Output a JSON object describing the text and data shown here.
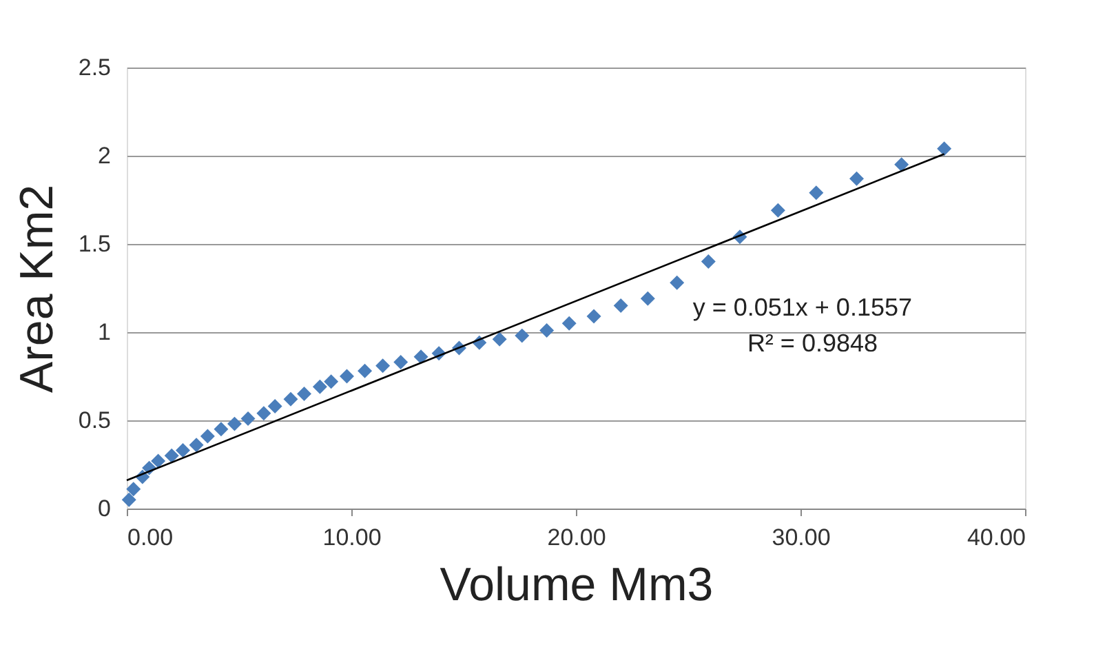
{
  "chart_data": {
    "type": "scatter",
    "xlabel": "Volume Mm3",
    "ylabel": "Area  Km2",
    "xlim": [
      0,
      40
    ],
    "ylim": [
      0,
      2.5
    ],
    "xticks": [
      {
        "value": 0,
        "label": "0.00"
      },
      {
        "value": 10,
        "label": "10.00"
      },
      {
        "value": 20,
        "label": "20.00"
      },
      {
        "value": 30,
        "label": "30.00"
      },
      {
        "value": 40,
        "label": "40.00"
      }
    ],
    "yticks": [
      0,
      0.5,
      1,
      1.5,
      2,
      2.5
    ],
    "grid": "y",
    "series": [
      {
        "marker": "diamond",
        "color": "#4a7ebb",
        "x": [
          0.1,
          0.3,
          0.7,
          1.0,
          1.4,
          2.0,
          2.5,
          3.1,
          3.6,
          4.2,
          4.8,
          5.4,
          6.1,
          6.6,
          7.3,
          7.9,
          8.6,
          9.1,
          9.8,
          10.6,
          11.4,
          12.2,
          13.1,
          13.9,
          14.8,
          15.7,
          16.6,
          17.6,
          18.7,
          19.7,
          20.8,
          22.0,
          23.2,
          24.5,
          25.9,
          27.3,
          29.0,
          30.7,
          32.5,
          34.5,
          36.4
        ],
        "values": [
          0.05,
          0.11,
          0.18,
          0.23,
          0.27,
          0.3,
          0.33,
          0.36,
          0.41,
          0.45,
          0.48,
          0.51,
          0.54,
          0.58,
          0.62,
          0.65,
          0.69,
          0.72,
          0.75,
          0.78,
          0.81,
          0.83,
          0.86,
          0.88,
          0.91,
          0.94,
          0.96,
          0.98,
          1.01,
          1.05,
          1.09,
          1.15,
          1.19,
          1.28,
          1.4,
          1.54,
          1.69,
          1.79,
          1.87,
          1.95,
          2.04
        ]
      },
      {
        "type": "line",
        "marker": "none",
        "line_style": "solid",
        "color": "#000000",
        "x": [
          0,
          36.4
        ],
        "values": [
          0.16,
          2.01
        ]
      }
    ],
    "annotations": [
      "y = 0.051x + 0.1557",
      "R² = 0.9848"
    ]
  }
}
